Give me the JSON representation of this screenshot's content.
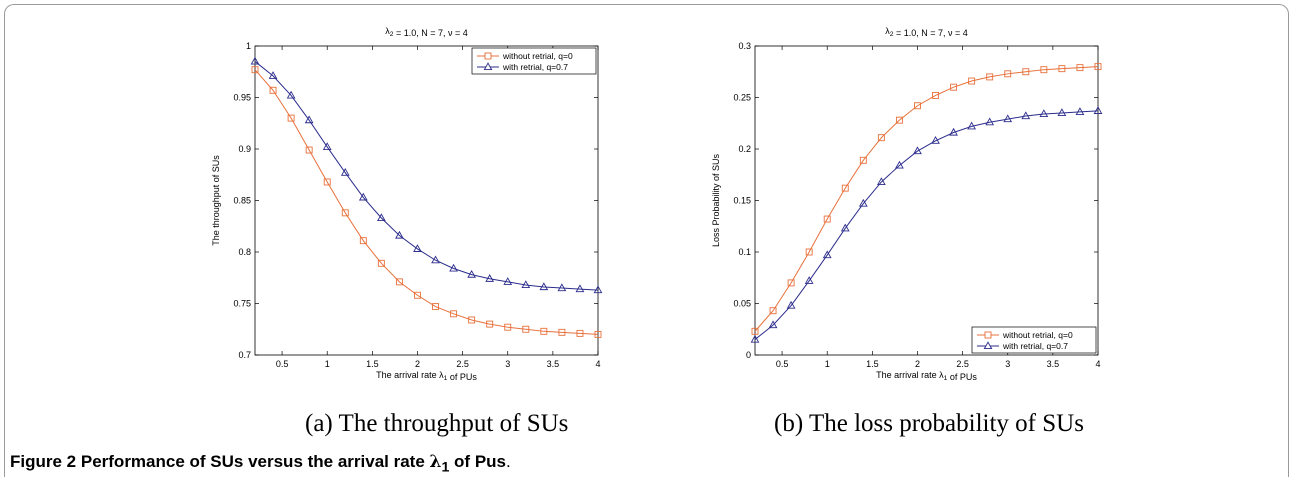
{
  "figure": {
    "label": "Figure 2",
    "caption_pre": "Performance of SUs versus the arrival rate ",
    "caption_symbol": "λ",
    "caption_sub": "1",
    "caption_post": " of Pus",
    "caption_end": "."
  },
  "subcaptions": {
    "a": "(a) The throughput of SUs",
    "b": "(b) The loss probability of SUs"
  },
  "chart_data": [
    {
      "type": "line",
      "title": "λ2 = 1.0,  N = 7, ν = 4",
      "xlabel": "The arrival rate λ1 of PUs",
      "ylabel": "The throughput of SUs",
      "xlim": [
        0.2,
        4
      ],
      "ylim": [
        0.7,
        1
      ],
      "xticks": [
        0.5,
        1,
        1.5,
        2,
        2.5,
        3,
        3.5,
        4
      ],
      "xtick_labels": [
        "0.5",
        "1",
        "1.5",
        "2",
        "2.5",
        "3",
        "3.5",
        "4"
      ],
      "yticks": [
        0.7,
        0.75,
        0.8,
        0.85,
        0.9,
        0.95,
        1
      ],
      "ytick_labels": [
        "0.7",
        "0.75",
        "0.8",
        "0.85",
        "0.9",
        "0.95",
        "1"
      ],
      "grid": false,
      "legend_position": "top-right",
      "x": [
        0.2,
        0.4,
        0.6,
        0.8,
        1.0,
        1.2,
        1.4,
        1.6,
        1.8,
        2.0,
        2.2,
        2.4,
        2.6,
        2.8,
        3.0,
        3.2,
        3.4,
        3.6,
        3.8,
        4.0
      ],
      "series": [
        {
          "name": "without retrial, q=0",
          "color": "#e8703a",
          "marker": "square",
          "values": [
            0.977,
            0.957,
            0.93,
            0.899,
            0.868,
            0.838,
            0.811,
            0.789,
            0.771,
            0.758,
            0.747,
            0.74,
            0.734,
            0.73,
            0.727,
            0.725,
            0.723,
            0.722,
            0.721,
            0.72
          ]
        },
        {
          "name": "with retrial, q=0.7",
          "color": "#2b2c8c",
          "marker": "triangle",
          "values": [
            0.985,
            0.971,
            0.952,
            0.928,
            0.902,
            0.877,
            0.853,
            0.833,
            0.816,
            0.803,
            0.792,
            0.784,
            0.778,
            0.774,
            0.771,
            0.768,
            0.766,
            0.765,
            0.764,
            0.763
          ]
        }
      ]
    },
    {
      "type": "line",
      "title": "λ2 = 1.0,  N = 7, ν = 4",
      "xlabel": "The arrival rate λ1 of PUs",
      "ylabel": "Loss Probability of SUs",
      "xlim": [
        0.2,
        4
      ],
      "ylim": [
        0,
        0.3
      ],
      "xticks": [
        0.5,
        1,
        1.5,
        2,
        2.5,
        3,
        3.5,
        4
      ],
      "xtick_labels": [
        "0.5",
        "1",
        "1.5",
        "2",
        "2.5",
        "3",
        "3.5",
        "4"
      ],
      "yticks": [
        0,
        0.05,
        0.1,
        0.15,
        0.2,
        0.25,
        0.3
      ],
      "ytick_labels": [
        "0",
        "0.05",
        "0.1",
        "0.15",
        "0.2",
        "0.25",
        "0.3"
      ],
      "grid": false,
      "legend_position": "bottom-right",
      "x": [
        0.2,
        0.4,
        0.6,
        0.8,
        1.0,
        1.2,
        1.4,
        1.6,
        1.8,
        2.0,
        2.2,
        2.4,
        2.6,
        2.8,
        3.0,
        3.2,
        3.4,
        3.6,
        3.8,
        4.0
      ],
      "series": [
        {
          "name": "without retrial, q=0",
          "color": "#e8703a",
          "marker": "square",
          "values": [
            0.023,
            0.043,
            0.07,
            0.1,
            0.132,
            0.162,
            0.189,
            0.211,
            0.228,
            0.242,
            0.252,
            0.26,
            0.266,
            0.27,
            0.273,
            0.275,
            0.277,
            0.278,
            0.279,
            0.28
          ]
        },
        {
          "name": "with retrial, q=0.7",
          "color": "#2b2c8c",
          "marker": "triangle",
          "values": [
            0.015,
            0.029,
            0.048,
            0.072,
            0.097,
            0.123,
            0.147,
            0.168,
            0.184,
            0.198,
            0.208,
            0.216,
            0.222,
            0.226,
            0.229,
            0.232,
            0.234,
            0.235,
            0.236,
            0.237
          ]
        }
      ]
    }
  ]
}
